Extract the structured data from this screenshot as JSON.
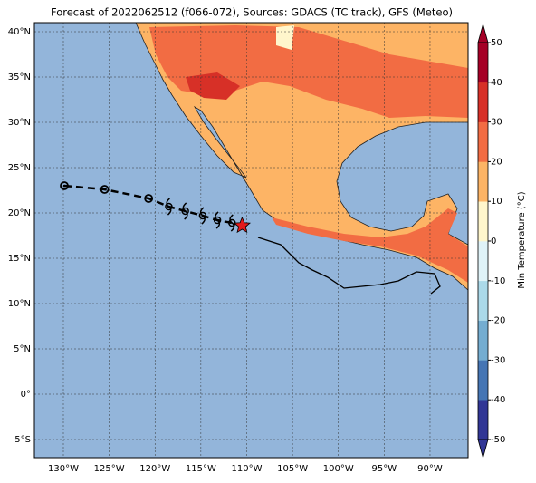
{
  "map": {
    "title": "Forecast of 2022062512 (f066-072), Sources: GDACS (TC track), GFS (Meteo)",
    "xlim": [
      -133.16,
      -85.85
    ],
    "ylim": [
      -7,
      41
    ],
    "xticks": [
      {
        "value": -130,
        "label": "130°W"
      },
      {
        "value": -125,
        "label": "125°W"
      },
      {
        "value": -120,
        "label": "120°W"
      },
      {
        "value": -115,
        "label": "115°W"
      },
      {
        "value": -110,
        "label": "110°W"
      },
      {
        "value": -105,
        "label": "105°W"
      },
      {
        "value": -100,
        "label": "100°W"
      },
      {
        "value": -95,
        "label": "95°W"
      },
      {
        "value": -90,
        "label": "90°W"
      }
    ],
    "yticks": [
      {
        "value": 40,
        "label": "40°N"
      },
      {
        "value": 35,
        "label": "35°N"
      },
      {
        "value": 30,
        "label": "30°N"
      },
      {
        "value": 25,
        "label": "25°N"
      },
      {
        "value": 20,
        "label": "20°N"
      },
      {
        "value": 15,
        "label": "15°N"
      },
      {
        "value": 10,
        "label": "10°N"
      },
      {
        "value": 5,
        "label": "5°N"
      },
      {
        "value": 0,
        "label": "0°"
      },
      {
        "value": -5,
        "label": "5°S"
      }
    ],
    "colorbar": {
      "label": "Min Temperature (°C)",
      "lim": [
        -50,
        50
      ],
      "ticks": [
        50,
        40,
        30,
        20,
        10,
        0,
        -10,
        -20,
        -30,
        -40,
        -50
      ],
      "colors": [
        "#313695",
        "#4575b4",
        "#74add1",
        "#abd9e9",
        "#e0f3f8",
        "#fff6cc",
        "#fdb465",
        "#f26c43",
        "#d73027",
        "#a50026"
      ]
    },
    "track": {
      "lon": [
        -129.9,
        -125.5,
        -120.7,
        -118.5,
        -116.7,
        -114.8,
        -113.2,
        -111.6,
        -110.5
      ],
      "lat": [
        23.0,
        22.6,
        21.6,
        20.7,
        20.2,
        19.7,
        19.2,
        18.9,
        18.6
      ]
    }
  }
}
